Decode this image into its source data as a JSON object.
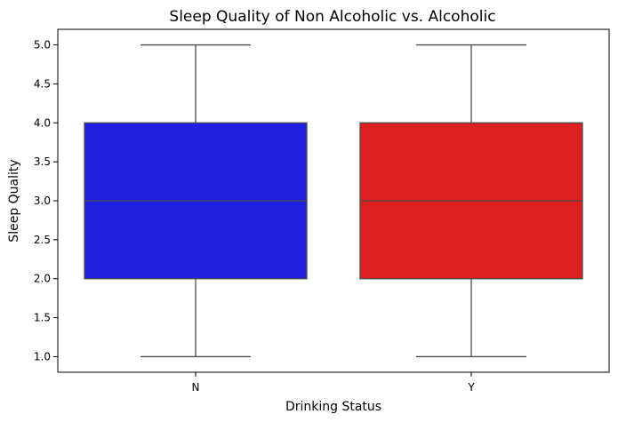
{
  "chart_data": {
    "type": "box",
    "title": "Sleep Quality of Non Alcoholic  vs. Alcoholic",
    "xlabel": "Drinking Status",
    "ylabel": "Sleep Quality",
    "ylim": [
      0.8,
      5.2
    ],
    "yticks": [
      "1.0",
      "1.5",
      "2.0",
      "2.5",
      "3.0",
      "3.5",
      "4.0",
      "4.5",
      "5.0"
    ],
    "categories": [
      "N",
      "Y"
    ],
    "boxes": [
      {
        "category": "N",
        "min": 1.0,
        "q1": 2.0,
        "median": 3.0,
        "q3": 4.0,
        "max": 5.0,
        "color": "#2020e0"
      },
      {
        "category": "Y",
        "min": 1.0,
        "q1": 2.0,
        "median": 3.0,
        "q3": 4.0,
        "max": 5.0,
        "color": "#de1f1f"
      }
    ],
    "grid": false,
    "legend": "none"
  }
}
